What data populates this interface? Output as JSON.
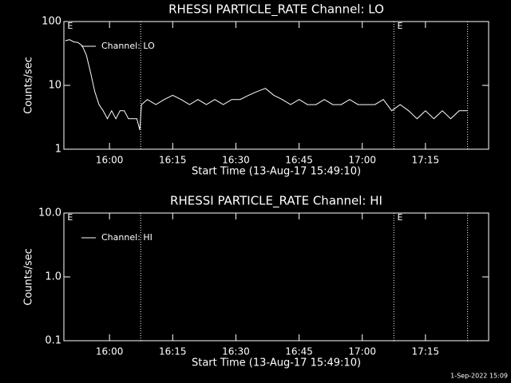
{
  "chart_data": [
    {
      "type": "line",
      "title": "RHESSI PARTICLE_RATE Channel: LO",
      "xlabel": "Start Time (13-Aug-17 15:49:10)",
      "ylabel": "Counts/sec",
      "log_y": true,
      "xlim": [
        949.17,
        1050
      ],
      "xticks": [
        {
          "value": 960,
          "label": "16:00"
        },
        {
          "value": 975,
          "label": "16:15"
        },
        {
          "value": 990,
          "label": "16:30"
        },
        {
          "value": 1005,
          "label": "16:45"
        },
        {
          "value": 1020,
          "label": "17:00"
        },
        {
          "value": 1035,
          "label": "17:15"
        }
      ],
      "ylim": [
        1,
        100
      ],
      "yticks": [
        1,
        10,
        100
      ],
      "event_lines": [
        967.4,
        1027.5,
        1045
      ],
      "event_labels": [
        {
          "x": 950,
          "label": "E"
        },
        {
          "x": 1028.3,
          "label": "E"
        }
      ],
      "legend": "upper left",
      "series": [
        {
          "name": "Channel: LO",
          "color": "#ffffff",
          "x": [
            949.5,
            950.5,
            951.5,
            952.5,
            953.5,
            954.5,
            955.5,
            956.5,
            957.5,
            958.5,
            959.5,
            960.5,
            961.5,
            962.5,
            963.5,
            964.5,
            965.5,
            966.5,
            967.2,
            967.6,
            969,
            971,
            973,
            975,
            977,
            979,
            981,
            983,
            985,
            987,
            989,
            991,
            993,
            995,
            997,
            999,
            1001,
            1003,
            1005,
            1007,
            1009,
            1011,
            1013,
            1015,
            1017,
            1019,
            1021,
            1023,
            1025,
            1027,
            1029,
            1031,
            1033,
            1035,
            1037,
            1039,
            1041,
            1043,
            1045
          ],
          "values": [
            50,
            52,
            48,
            47,
            42,
            30,
            16,
            8,
            5,
            4,
            3,
            4,
            3,
            4,
            4,
            3,
            3,
            3,
            2,
            5,
            6,
            5,
            6,
            7,
            6,
            5,
            6,
            5,
            6,
            5,
            6,
            6,
            7,
            8,
            9,
            7,
            6,
            5,
            6,
            5,
            5,
            6,
            5,
            5,
            6,
            5,
            5,
            5,
            6,
            4,
            5,
            4,
            3,
            4,
            3,
            4,
            3,
            4,
            4
          ]
        }
      ]
    },
    {
      "type": "line",
      "title": "RHESSI PARTICLE_RATE Channel: HI",
      "xlabel": "Start Time (13-Aug-17 15:49:10)",
      "ylabel": "Counts/sec",
      "log_y": true,
      "xlim": [
        949.17,
        1050
      ],
      "xticks": [
        {
          "value": 960,
          "label": "16:00"
        },
        {
          "value": 975,
          "label": "16:15"
        },
        {
          "value": 990,
          "label": "16:30"
        },
        {
          "value": 1005,
          "label": "16:45"
        },
        {
          "value": 1020,
          "label": "17:00"
        },
        {
          "value": 1035,
          "label": "17:15"
        }
      ],
      "ylim": [
        0.1,
        10
      ],
      "yticks": [
        0.1,
        {
          "value": 1,
          "label": "1.0"
        },
        {
          "value": 10,
          "label": "10.0"
        }
      ],
      "event_lines": [
        967.4,
        1027.5,
        1045
      ],
      "event_labels": [
        {
          "x": 950,
          "label": "E"
        },
        {
          "x": 1028.3,
          "label": "E"
        }
      ],
      "legend": "upper left",
      "series": [
        {
          "name": "Channel: HI",
          "color": "#ffffff",
          "x": [],
          "values": []
        }
      ]
    }
  ],
  "footer": "1-Sep-2022 15:09"
}
